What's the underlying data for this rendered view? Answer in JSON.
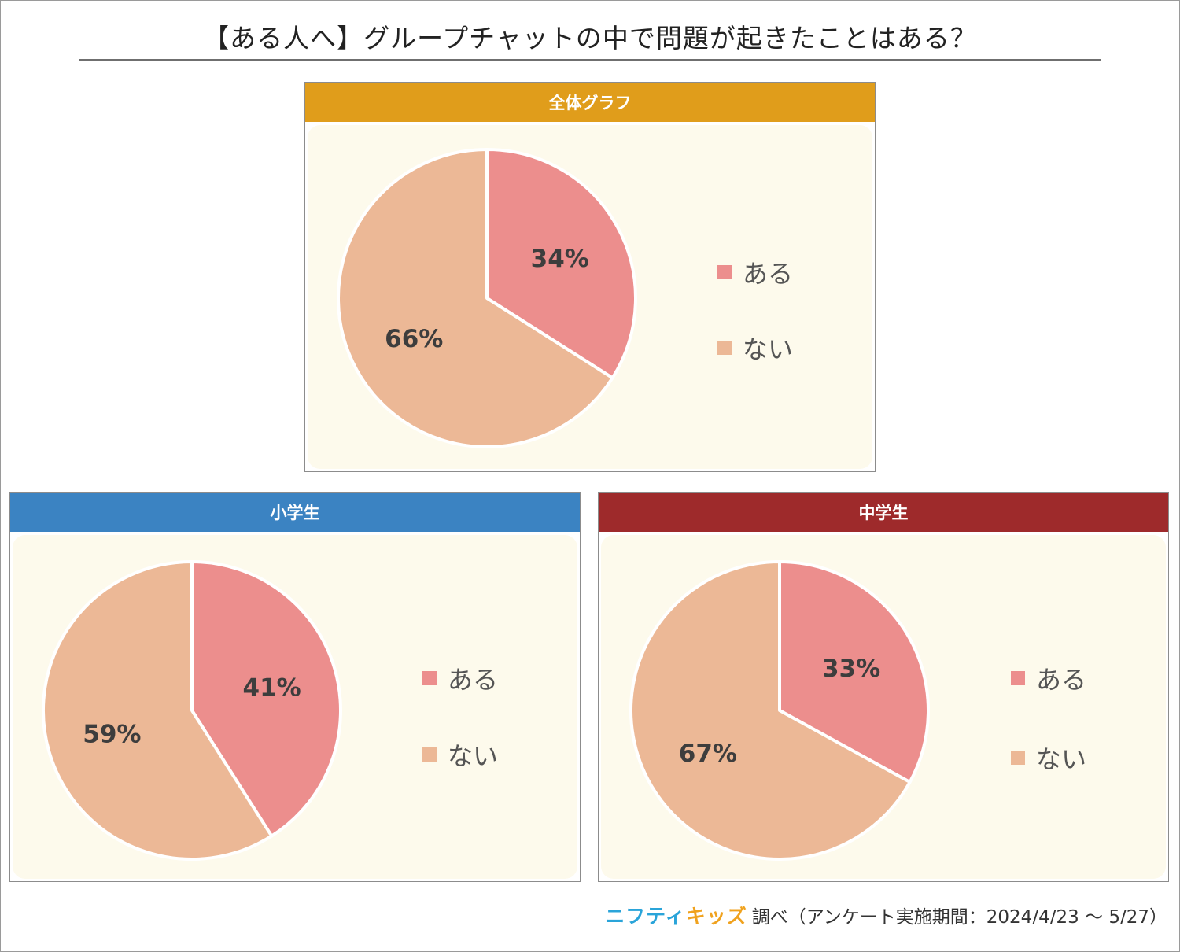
{
  "title": "【ある人へ】グループチャットの中で問題が起きたことはある？",
  "colors": {
    "aru": "#ec8e8d",
    "nai": "#ecb896",
    "panel_bg": "#fdfaec",
    "header_all": "#e09d1b",
    "header_elem": "#3b83c2",
    "header_jh": "#9e2a2b"
  },
  "legend": {
    "aru": "ある",
    "nai": "ない"
  },
  "footer": {
    "brand_a": "ニフティ",
    "brand_b": "キッズ",
    "text": "調べ（アンケート実施期間：2024/4/23 ～ 5/27）"
  },
  "chart_data": [
    {
      "type": "pie",
      "title": "全体グラフ",
      "categories": [
        "ある",
        "ない"
      ],
      "values": [
        34,
        66
      ],
      "labels": [
        "34%",
        "66%"
      ]
    },
    {
      "type": "pie",
      "title": "小学生",
      "categories": [
        "ある",
        "ない"
      ],
      "values": [
        41,
        59
      ],
      "labels": [
        "41%",
        "59%"
      ]
    },
    {
      "type": "pie",
      "title": "中学生",
      "categories": [
        "ある",
        "ない"
      ],
      "values": [
        33,
        67
      ],
      "labels": [
        "33%",
        "67%"
      ]
    }
  ]
}
